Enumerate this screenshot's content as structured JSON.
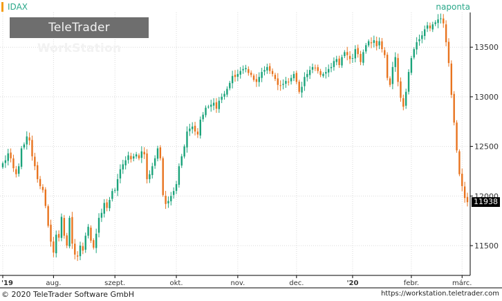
{
  "header": {
    "symbol": "IDAX",
    "period": "naponta",
    "last_value": "11938"
  },
  "logo": {
    "brand": "TeleTrader",
    "product": "WorkStation"
  },
  "footer": {
    "copyright": "© 2020 TeleTrader Software GmbH",
    "url": "https://workstation.teletrader.com"
  },
  "colors": {
    "up": "#1aa37a",
    "down": "#e8731e",
    "grid": "#d9d9d9",
    "axis": "#000000"
  },
  "chart_data": {
    "type": "candlestick",
    "title": "",
    "xlabel": "",
    "ylabel": "",
    "ylim": [
      11200,
      13850
    ],
    "y_ticks": [
      11500,
      12000,
      12500,
      13000,
      13500
    ],
    "y_tick_labels": [
      "11500",
      "12000",
      "12500",
      "13000",
      "13500"
    ],
    "x_tick_labels": [
      "'19",
      "aug.",
      "szept.",
      "okt.",
      "nov.",
      "dec.",
      "'20",
      "febr.",
      "márc."
    ],
    "x_tick_positions": [
      0,
      19,
      42,
      65,
      88,
      110,
      131,
      153,
      172
    ],
    "grid": true,
    "series": [
      {
        "closes": [
          12330,
          12360,
          12430,
          12380,
          12280,
          12220,
          12300,
          12480,
          12520,
          12600,
          12560,
          12400,
          12300,
          12170,
          12100,
          12060,
          11900,
          11700,
          11540,
          11430,
          11610,
          11580,
          11790,
          11600,
          11500,
          11780,
          11520,
          11410,
          11390,
          11500,
          11450,
          11600,
          11690,
          11550,
          11480,
          11620,
          11780,
          11830,
          11930,
          11880,
          11960,
          12050,
          12060,
          12170,
          12270,
          12320,
          12360,
          12410,
          12370,
          12400,
          12420,
          12380,
          12450,
          12420,
          12170,
          12220,
          12300,
          12380,
          12480,
          12380,
          12010,
          11920,
          11950,
          12000,
          12050,
          12120,
          12300,
          12400,
          12500,
          12650,
          12680,
          12700,
          12650,
          12620,
          12770,
          12820,
          12890,
          12900,
          12920,
          12940,
          12880,
          12960,
          13000,
          13030,
          13080,
          13140,
          13210,
          13200,
          13230,
          13260,
          13280,
          13290,
          13240,
          13220,
          13170,
          13150,
          13200,
          13250,
          13270,
          13300,
          13260,
          13230,
          13180,
          13120,
          13110,
          13130,
          13160,
          13150,
          13190,
          13230,
          13150,
          13050,
          13100,
          13200,
          13230,
          13270,
          13300,
          13290,
          13260,
          13220,
          13230,
          13250,
          13280,
          13300,
          13360,
          13380,
          13320,
          13400,
          13450,
          13420,
          13380,
          13390,
          13480,
          13430,
          13350,
          13450,
          13520,
          13560,
          13540,
          13570,
          13510,
          13560,
          13480,
          13420,
          13190,
          13120,
          13300,
          13400,
          13150,
          12990,
          12900,
          13050,
          13250,
          13390,
          13480,
          13550,
          13580,
          13620,
          13680,
          13720,
          13690,
          13730,
          13750,
          13780,
          13790,
          13740,
          13550,
          13340,
          13020,
          12740,
          12460,
          12220,
          12100,
          11980,
          11938
        ],
        "up_color": "#1aa37a",
        "down_color": "#e8731e"
      }
    ]
  }
}
